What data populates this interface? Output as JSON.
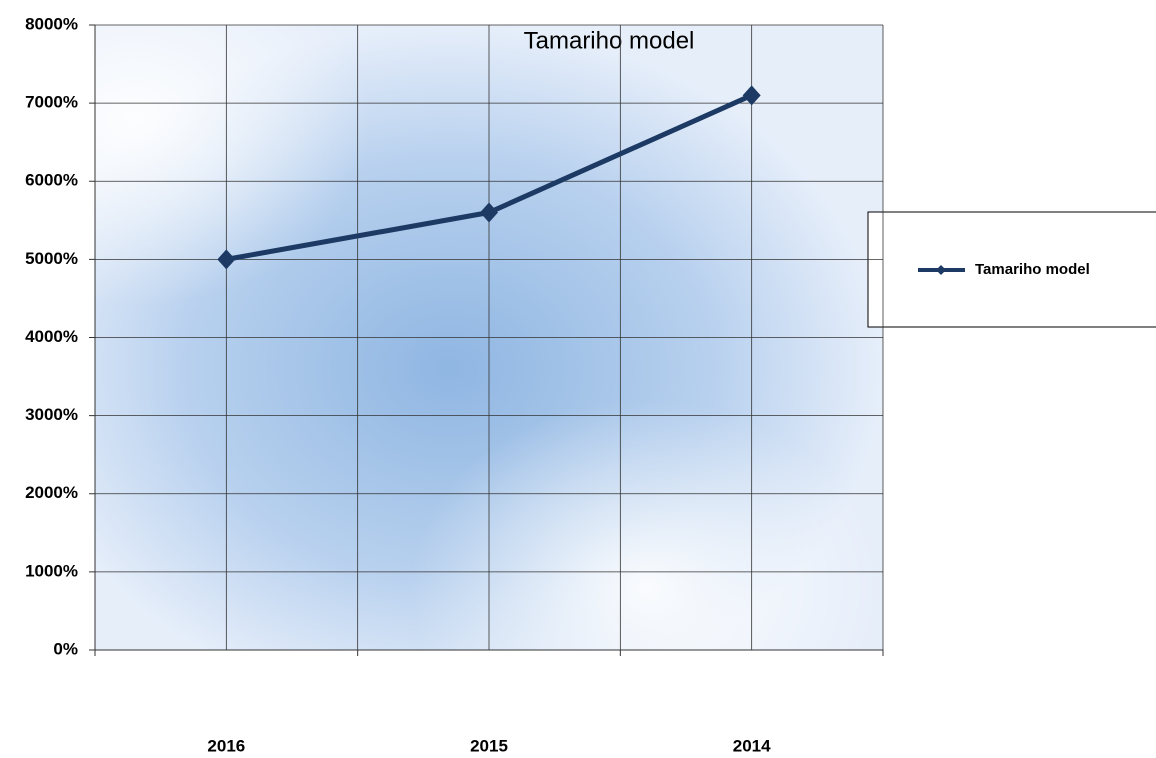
{
  "chart_data": {
    "type": "line",
    "title": "Tamariho model",
    "categories": [
      "2016",
      "2015",
      "2014"
    ],
    "series": [
      {
        "name": "Tamariho model",
        "color": "#1c3a63",
        "values": [
          5000,
          5600,
          7100
        ]
      }
    ],
    "ylim": [
      0,
      8000
    ],
    "yticks": [
      {
        "value": 0,
        "label": "0%"
      },
      {
        "value": 1000,
        "label": "1000%"
      },
      {
        "value": 2000,
        "label": "2000%"
      },
      {
        "value": 3000,
        "label": "3000%"
      },
      {
        "value": 4000,
        "label": "4000%"
      },
      {
        "value": 5000,
        "label": "5000%"
      },
      {
        "value": 6000,
        "label": "6000%"
      },
      {
        "value": 7000,
        "label": "7000%"
      },
      {
        "value": 8000,
        "label": "8000%"
      }
    ],
    "grid": true,
    "legend": "right"
  }
}
